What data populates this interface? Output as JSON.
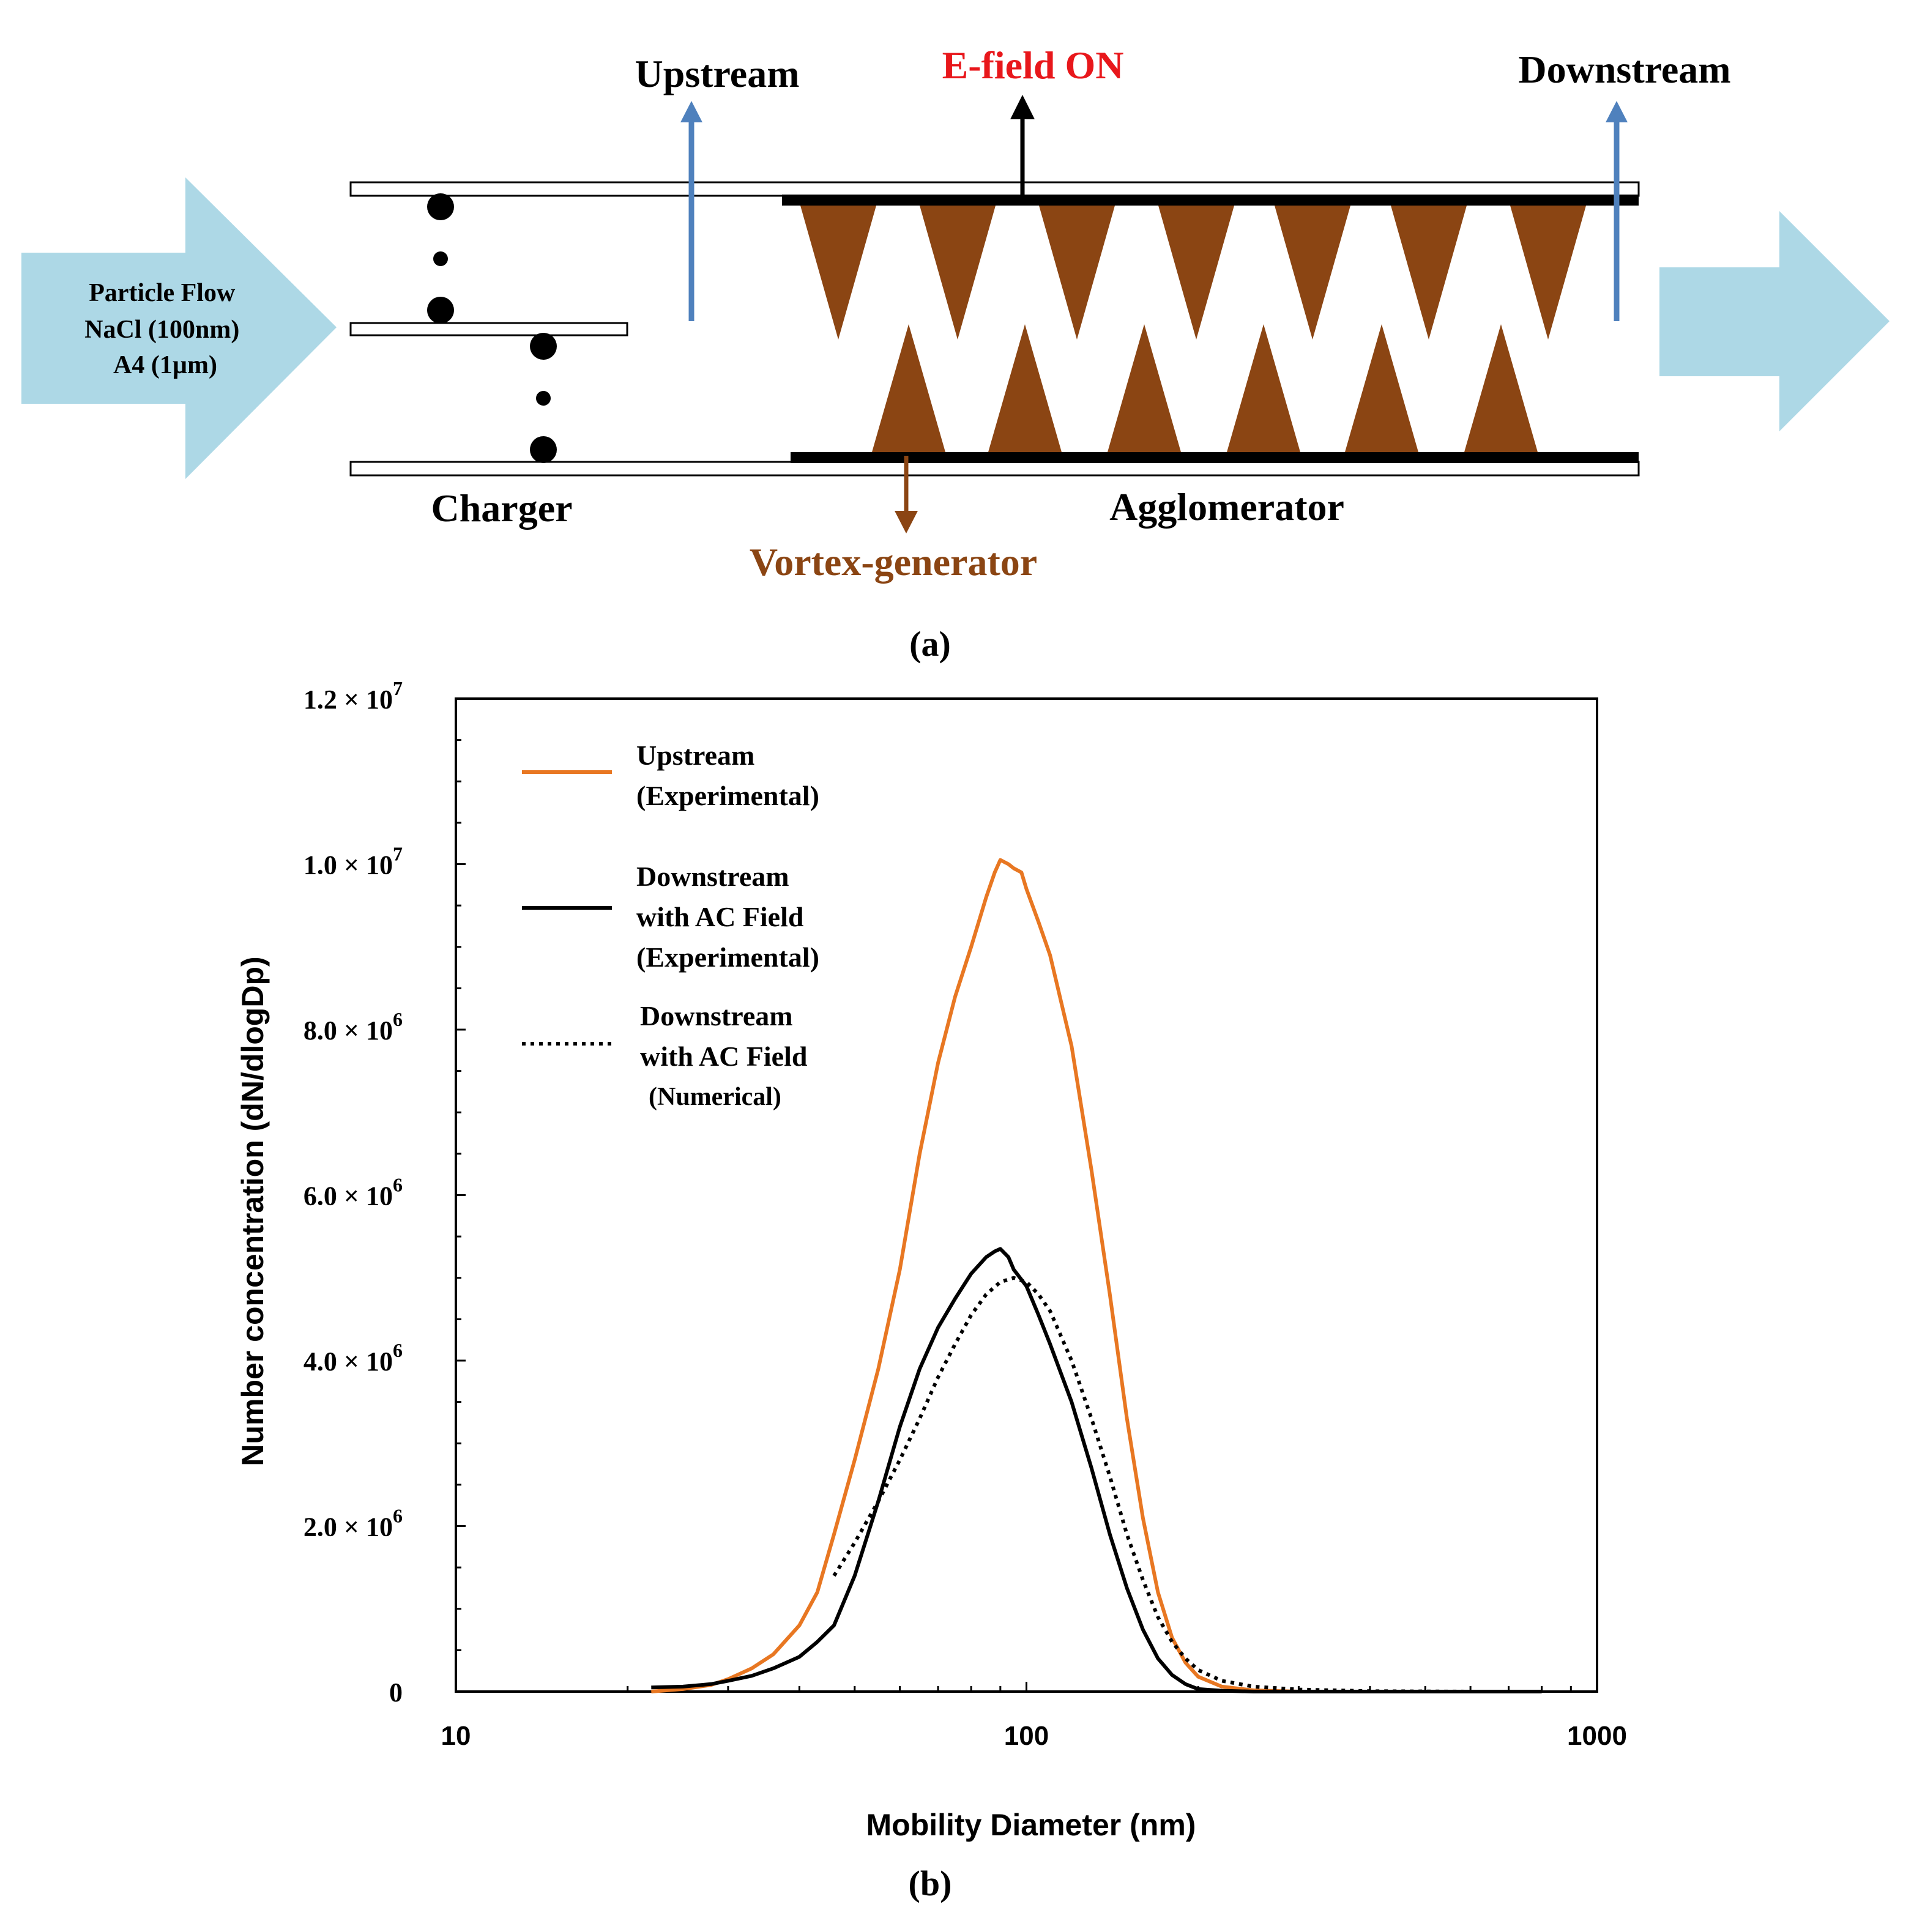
{
  "diagram": {
    "inlet_lines": [
      "Particle Flow",
      "NaCl (100nm)",
      "A4 (1µm)"
    ],
    "upstream_label": "Upstream",
    "efield_label": "E-field ON",
    "downstream_label": "Downstream",
    "charger_label": "Charger",
    "agglomerator_label": "Agglomerator",
    "vortex_label": "Vortex-generator",
    "panel_label": "(a)",
    "colors": {
      "flow_arrow": "#add8e6",
      "efield": "#e8171b",
      "vortex": "#8b4513",
      "probe_arrow": "#4f81bd"
    }
  },
  "chart": {
    "panel_label": "(b)",
    "legend": [
      {
        "lines": [
          "Upstream",
          "(Experimental)"
        ]
      },
      {
        "lines": [
          "Downstream",
          "with AC Field",
          "(Experimental)"
        ]
      },
      {
        "lines": [
          "Downstream",
          "with AC Field",
          "(Numerical)"
        ]
      }
    ],
    "y_tick_labels": [
      {
        "value": 0,
        "mant": "0",
        "exp": ""
      },
      {
        "value": 2000000,
        "mant": "2.0 × 10",
        "exp": "6"
      },
      {
        "value": 4000000,
        "mant": "4.0 × 10",
        "exp": "6"
      },
      {
        "value": 6000000,
        "mant": "6.0 × 10",
        "exp": "6"
      },
      {
        "value": 8000000,
        "mant": "8.0 × 10",
        "exp": "6"
      },
      {
        "value": 10000000,
        "mant": "1.0 × 10",
        "exp": "7"
      },
      {
        "value": 12000000,
        "mant": "1.2 × 10",
        "exp": "7"
      }
    ],
    "x_tick_labels": [
      {
        "value": 10,
        "label": "10"
      },
      {
        "value": 100,
        "label": "100"
      },
      {
        "value": 1000,
        "label": "1000"
      }
    ]
  },
  "chart_data": {
    "type": "line",
    "xlabel": "Mobility Diameter (nm)",
    "ylabel": "Number concentration (dN/dlogDp)",
    "xscale": "log",
    "xlim": [
      10,
      1000
    ],
    "ylim": [
      0,
      12000000
    ],
    "legend_position": "top-left",
    "series": [
      {
        "name": "Upstream (Experimental)",
        "color": "#e87722",
        "style": "solid",
        "x": [
          22,
          25,
          28,
          30,
          33,
          36,
          40,
          43,
          46,
          50,
          55,
          60,
          65,
          70,
          75,
          80,
          85,
          88,
          90,
          93,
          95,
          98,
          100,
          105,
          110,
          120,
          130,
          140,
          150,
          160,
          170,
          180,
          190,
          200,
          220,
          250,
          300
        ],
        "y": [
          0,
          30000,
          80000,
          150000,
          280000,
          450000,
          800000,
          1200000,
          1900000,
          2800000,
          3900000,
          5100000,
          6500000,
          7600000,
          8400000,
          9000000,
          9600000,
          9900000,
          10050000,
          10000000,
          9950000,
          9900000,
          9700000,
          9300000,
          8900000,
          7800000,
          6300000,
          4800000,
          3300000,
          2100000,
          1200000,
          650000,
          350000,
          180000,
          60000,
          15000,
          0
        ]
      },
      {
        "name": "Downstream with AC Field (Experimental)",
        "color": "#000000",
        "style": "solid",
        "x": [
          22,
          25,
          28,
          30,
          33,
          36,
          40,
          43,
          46,
          50,
          55,
          60,
          65,
          70,
          75,
          80,
          85,
          88,
          90,
          93,
          95,
          100,
          105,
          110,
          120,
          130,
          140,
          150,
          160,
          170,
          180,
          190,
          200,
          220,
          250,
          300,
          500,
          800
        ],
        "y": [
          50000,
          60000,
          90000,
          130000,
          190000,
          280000,
          420000,
          600000,
          800000,
          1400000,
          2300000,
          3200000,
          3900000,
          4400000,
          4750000,
          5050000,
          5250000,
          5320000,
          5350000,
          5250000,
          5100000,
          4900000,
          4550000,
          4200000,
          3500000,
          2700000,
          1900000,
          1250000,
          750000,
          400000,
          200000,
          90000,
          30000,
          10000,
          0,
          0,
          0,
          0
        ]
      },
      {
        "name": "Downstream with AC Field (Numerical)",
        "color": "#000000",
        "style": "dotted",
        "x": [
          46,
          50,
          55,
          60,
          65,
          70,
          75,
          80,
          85,
          90,
          95,
          100,
          105,
          110,
          120,
          130,
          140,
          150,
          160,
          170,
          180,
          190,
          200,
          220,
          250,
          300,
          400,
          600
        ],
        "y": [
          1400000,
          1800000,
          2300000,
          2800000,
          3300000,
          3800000,
          4200000,
          4550000,
          4800000,
          4950000,
          5000000,
          4950000,
          4800000,
          4600000,
          4000000,
          3300000,
          2600000,
          1900000,
          1350000,
          900000,
          600000,
          400000,
          260000,
          130000,
          60000,
          25000,
          5000,
          0
        ]
      }
    ]
  }
}
